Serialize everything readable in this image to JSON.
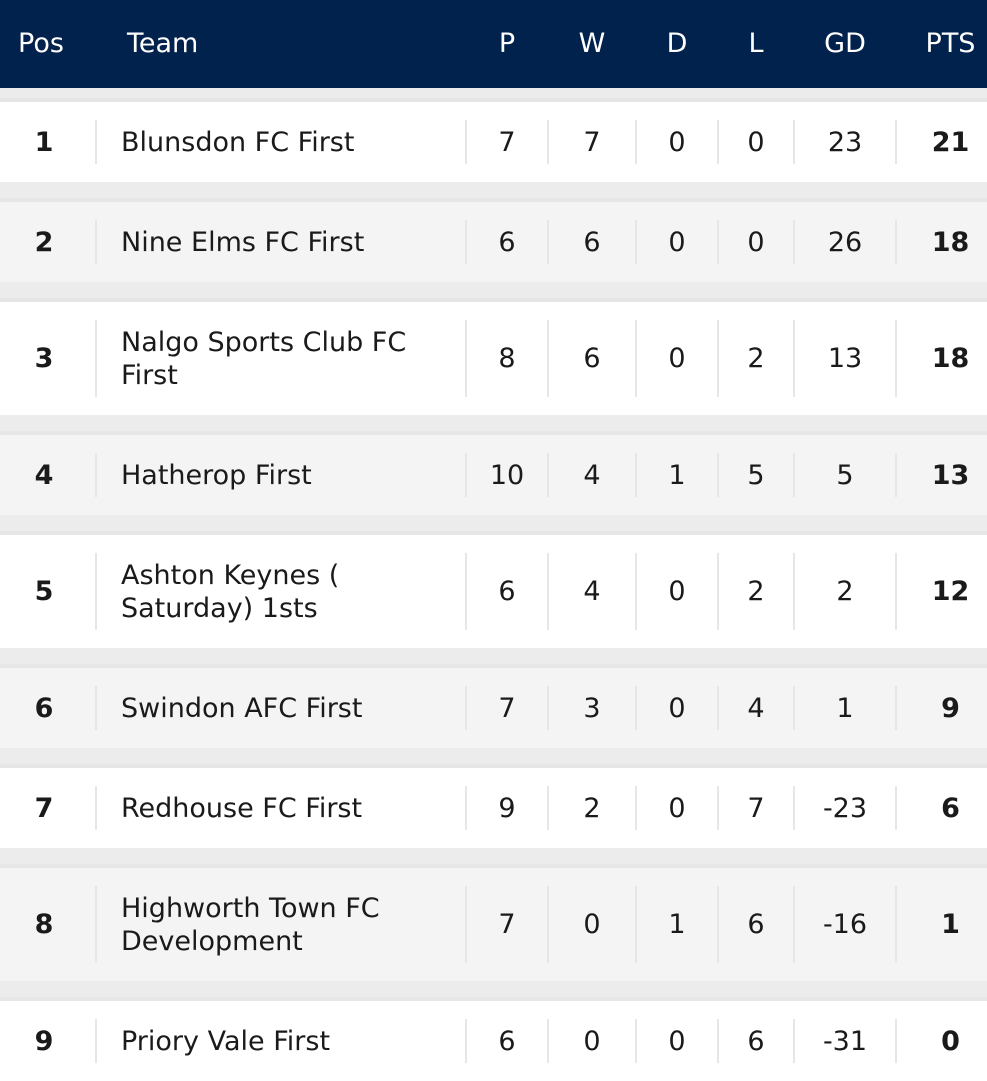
{
  "header": {
    "pos": "Pos",
    "team": "Team",
    "p": "P",
    "w": "W",
    "d": "D",
    "l": "L",
    "gd": "GD",
    "pts": "PTS"
  },
  "rows": [
    {
      "pos": "1",
      "team": "Blunsdon FC First",
      "p": "7",
      "w": "7",
      "d": "0",
      "l": "0",
      "gd": "23",
      "pts": "21"
    },
    {
      "pos": "2",
      "team": "Nine Elms FC First",
      "p": "6",
      "w": "6",
      "d": "0",
      "l": "0",
      "gd": "26",
      "pts": "18"
    },
    {
      "pos": "3",
      "team": "Nalgo Sports Club FC First",
      "p": "8",
      "w": "6",
      "d": "0",
      "l": "2",
      "gd": "13",
      "pts": "18"
    },
    {
      "pos": "4",
      "team": "Hatherop First",
      "p": "10",
      "w": "4",
      "d": "1",
      "l": "5",
      "gd": "5",
      "pts": "13"
    },
    {
      "pos": "5",
      "team": "Ashton Keynes ( Saturday) 1sts",
      "p": "6",
      "w": "4",
      "d": "0",
      "l": "2",
      "gd": "2",
      "pts": "12"
    },
    {
      "pos": "6",
      "team": "Swindon AFC First",
      "p": "7",
      "w": "3",
      "d": "0",
      "l": "4",
      "gd": "1",
      "pts": "9"
    },
    {
      "pos": "7",
      "team": "Redhouse FC First",
      "p": "9",
      "w": "2",
      "d": "0",
      "l": "7",
      "gd": "-23",
      "pts": "6"
    },
    {
      "pos": "8",
      "team": "Highworth Town FC Development",
      "p": "7",
      "w": "0",
      "d": "1",
      "l": "6",
      "gd": "-16",
      "pts": "1"
    },
    {
      "pos": "9",
      "team": "Priory Vale First",
      "p": "6",
      "w": "0",
      "d": "0",
      "l": "6",
      "gd": "-31",
      "pts": "0"
    }
  ],
  "colors": {
    "header_bg": "#00224d",
    "header_text": "#ffffff",
    "row_alt_bg": "#f4f4f4"
  }
}
